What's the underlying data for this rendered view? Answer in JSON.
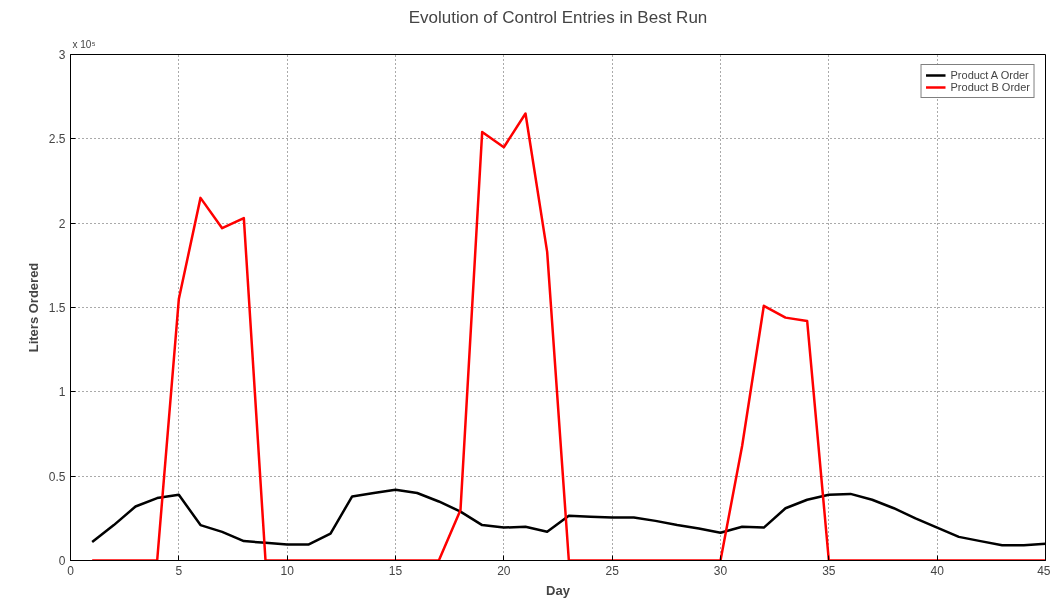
{
  "chart_data": {
    "type": "line",
    "title": "Evolution of Control Entries in Best Run",
    "xlabel": "Day",
    "ylabel": "Liters Ordered",
    "annotations": [
      "x 10⁵"
    ],
    "x": [
      1,
      2,
      3,
      4,
      5,
      6,
      7,
      8,
      9,
      10,
      11,
      12,
      13,
      14,
      15,
      16,
      17,
      18,
      19,
      20,
      21,
      22,
      23,
      24,
      25,
      26,
      27,
      28,
      29,
      30,
      31,
      32,
      33,
      34,
      35,
      36,
      37,
      38,
      39,
      40,
      41,
      42,
      43,
      44,
      45
    ],
    "series": [
      {
        "name": "Product A Order",
        "color": "#000000",
        "values": [
          0.11,
          0.21,
          0.32,
          0.37,
          0.39,
          0.21,
          0.17,
          0.115,
          0.105,
          0.095,
          0.095,
          0.16,
          0.38,
          0.4,
          0.42,
          0.4,
          0.35,
          0.29,
          0.21,
          0.195,
          0.2,
          0.17,
          0.265,
          0.26,
          0.255,
          0.255,
          0.235,
          0.21,
          0.19,
          0.165,
          0.2,
          0.195,
          0.31,
          0.36,
          0.39,
          0.395,
          0.36,
          0.31,
          0.25,
          0.195,
          0.14,
          0.115,
          0.09,
          0.09,
          0.1
        ]
      },
      {
        "name": "Product B Order",
        "color": "#ff0000",
        "values": [
          0,
          0,
          0,
          0,
          1.55,
          2.15,
          1.97,
          2.03,
          0,
          0,
          0,
          0,
          0,
          0,
          0,
          0,
          0,
          0.3,
          2.54,
          2.45,
          2.65,
          1.83,
          0,
          0,
          0,
          0,
          0,
          0,
          0,
          0,
          0.68,
          1.51,
          1.44,
          1.42,
          0,
          0,
          0,
          0,
          0,
          0,
          0,
          0,
          0,
          0,
          0
        ]
      }
    ],
    "xlim": [
      0,
      45
    ],
    "ylim": [
      0,
      3
    ],
    "xticks": [
      0,
      5,
      10,
      15,
      20,
      25,
      30,
      35,
      40,
      45
    ],
    "yticks": [
      0,
      0.5,
      1,
      1.5,
      2,
      2.5,
      3
    ],
    "grid": true,
    "legend": "top right",
    "line_style": "solid",
    "marker": "none"
  }
}
